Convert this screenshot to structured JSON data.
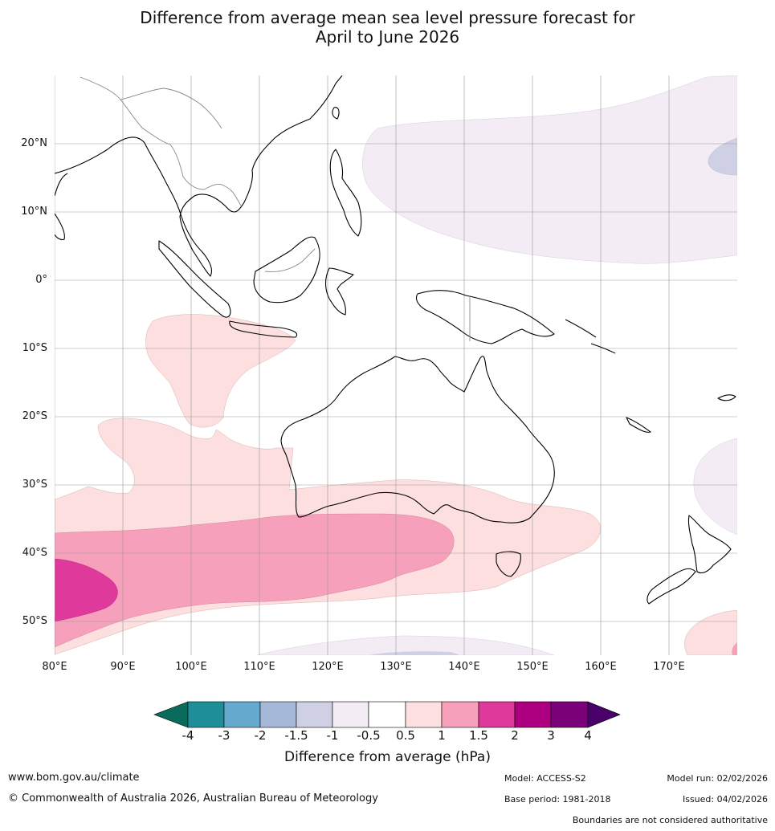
{
  "title": {
    "line1": "Difference from average mean sea level pressure forecast for",
    "line2": "April to June 2026"
  },
  "map": {
    "lat_labels": [
      "20°N",
      "10°N",
      "0°",
      "10°S",
      "20°S",
      "30°S",
      "40°S",
      "50°S"
    ],
    "lon_labels": [
      "80°E",
      "90°E",
      "100°E",
      "110°E",
      "120°E",
      "130°E",
      "140°E",
      "150°E",
      "160°E",
      "170°E"
    ],
    "colors": {
      "neg_light": "#f3ecf4",
      "neg_mid": "#cfd0e4",
      "pos_light": "#fddfdf",
      "pos_mid": "#f7a0bb",
      "pos_strong": "#df3a9b",
      "land_outline": "#000000",
      "border": "#888888",
      "grid": "#999999"
    }
  },
  "legend": {
    "colors": [
      "#0a6b5b",
      "#1e8f99",
      "#66a9cf",
      "#a6b8d8",
      "#cfd0e4",
      "#f3ecf4",
      "#ffffff",
      "#fddfdf",
      "#f7a0bb",
      "#df3a9b",
      "#ac0081",
      "#7a0177",
      "#49006a"
    ],
    "tick_labels": [
      "-4",
      "-3",
      "-2",
      "-1.5",
      "-1",
      "-0.5",
      "0.5",
      "1",
      "1.5",
      "2",
      "3",
      "4"
    ],
    "title": "Difference from average (hPa)"
  },
  "footer": {
    "website": "www.bom.gov.au/climate",
    "copyright": "© Commonwealth of Australia 2026, Australian Bureau of Meteorology",
    "model": "Model: ACCESS-S2",
    "base_period": "Base period: 1981-2018",
    "model_run": "Model run: 02/02/2026",
    "issued": "Issued: 04/02/2026",
    "disclaimer": "Boundaries are not considered authoritative"
  }
}
